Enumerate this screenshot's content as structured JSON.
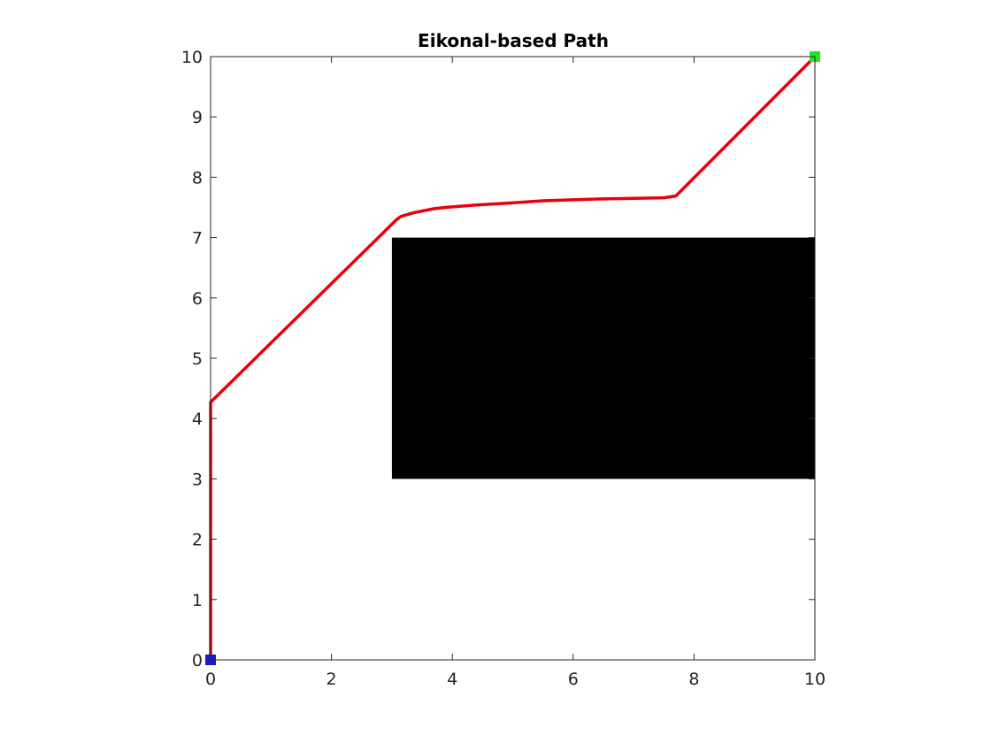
{
  "chart_data": {
    "type": "line",
    "title": "Eikonal-based Path",
    "xlabel": "",
    "ylabel": "",
    "xlim": [
      0,
      10
    ],
    "ylim": [
      0,
      10
    ],
    "xticks": [
      0,
      2,
      4,
      6,
      8,
      10
    ],
    "yticks": [
      0,
      1,
      2,
      3,
      4,
      5,
      6,
      7,
      8,
      9,
      10
    ],
    "grid": false,
    "obstacles": [
      {
        "x": [
          3,
          10
        ],
        "y": [
          3,
          7
        ],
        "color": "#000000"
      }
    ],
    "series": [
      {
        "color": "#e8000b",
        "x": [
          0,
          0,
          3.08,
          3.15,
          3.25,
          3.35,
          3.5,
          3.7,
          4.0,
          4.4,
          4.9,
          5.5,
          6.4,
          7.5,
          7.7,
          10
        ],
        "y": [
          0,
          4.27,
          7.3,
          7.35,
          7.38,
          7.41,
          7.44,
          7.48,
          7.51,
          7.54,
          7.57,
          7.61,
          7.64,
          7.66,
          7.69,
          10
        ]
      }
    ],
    "markers": [
      {
        "x": 0,
        "y": 0,
        "color": "#1a1acc"
      },
      {
        "x": 10,
        "y": 10,
        "color": "#22e622"
      }
    ]
  }
}
